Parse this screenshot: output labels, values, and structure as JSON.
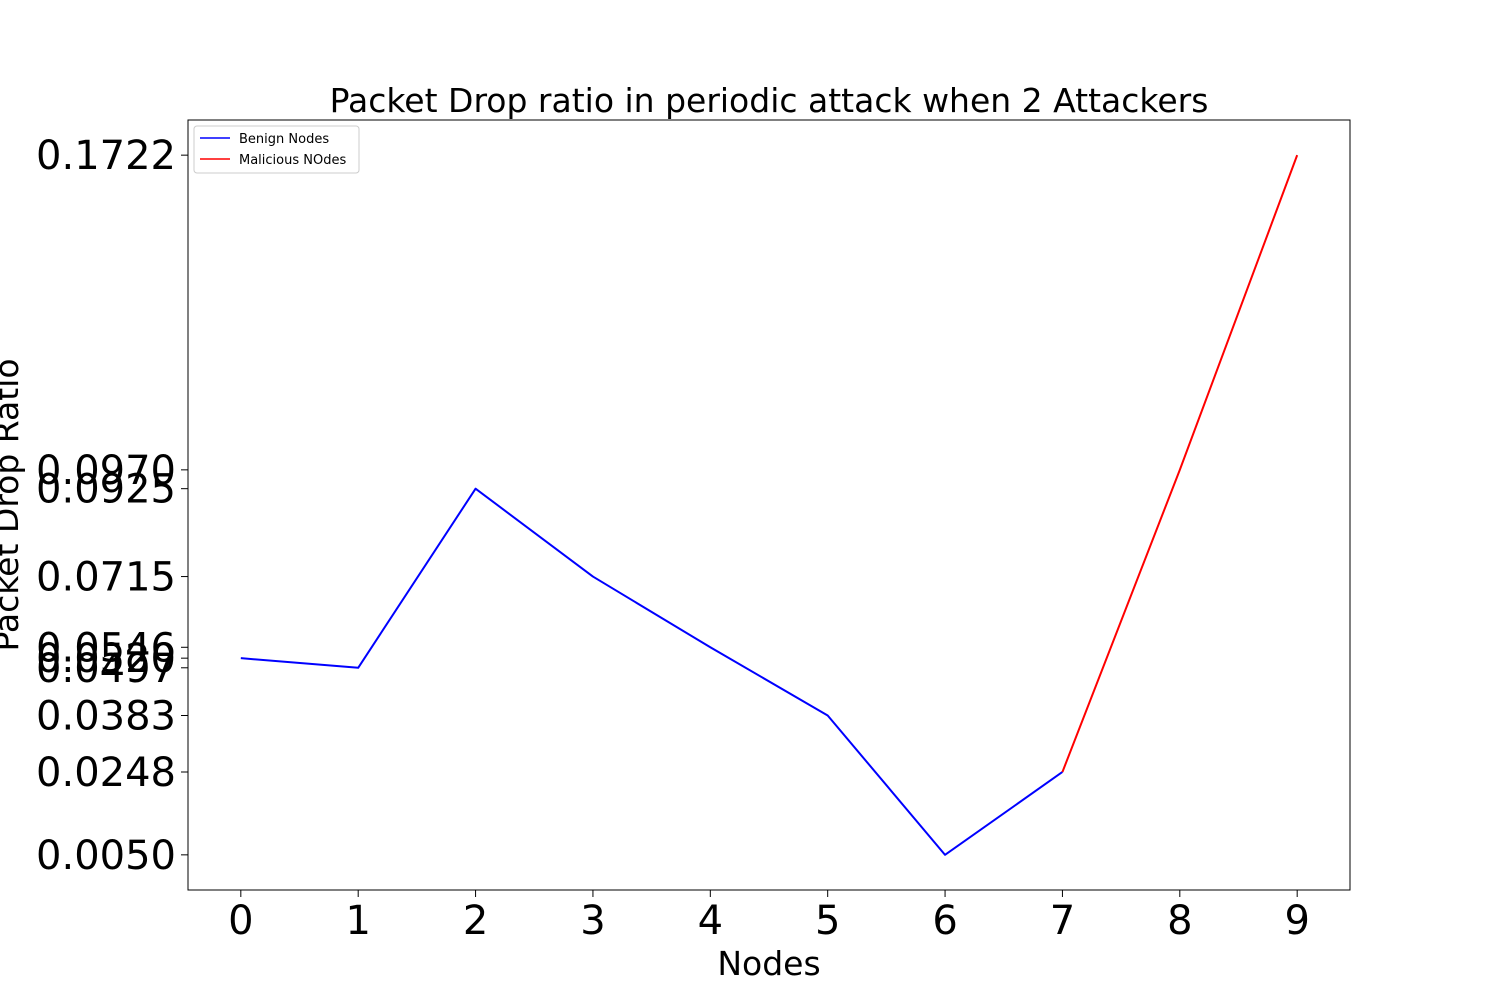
{
  "chart_data": {
    "type": "line",
    "title": "Packet Drop ratio in periodic attack when 2 Attackers",
    "xlabel": "Nodes",
    "ylabel": "Packet Drop Ratio",
    "x": [
      0,
      1,
      2,
      3,
      4,
      5,
      6,
      7,
      8,
      9
    ],
    "x_ticks": [
      "0",
      "1",
      "2",
      "3",
      "4",
      "5",
      "6",
      "7",
      "8",
      "9"
    ],
    "y_ticks": [
      0.005,
      0.0248,
      0.0383,
      0.0497,
      0.052,
      0.0546,
      0.0715,
      0.0925,
      0.097,
      0.1722
    ],
    "y_tick_labels": [
      "0.0050",
      "0.0248",
      "0.0383",
      "0.0497",
      "0.0520",
      "0.0546",
      "0.0715",
      "0.0925",
      "0.0970",
      "0.1722"
    ],
    "xlim": [
      -0.45,
      9.45
    ],
    "ylim": [
      -0.0034,
      0.1806
    ],
    "grid": false,
    "legend_position": "top-left",
    "series": [
      {
        "name": "Benign Nodes",
        "color": "#0000ff",
        "x": [
          0,
          1,
          2,
          3,
          4,
          5,
          6,
          7
        ],
        "values": [
          0.052,
          0.0497,
          0.0925,
          0.0715,
          0.0546,
          0.0383,
          0.005,
          0.0248
        ]
      },
      {
        "name": "Malicious NOdes",
        "color": "#ff0000",
        "x": [
          7,
          8,
          9
        ],
        "values": [
          0.0248,
          0.097,
          0.1722
        ]
      }
    ]
  }
}
